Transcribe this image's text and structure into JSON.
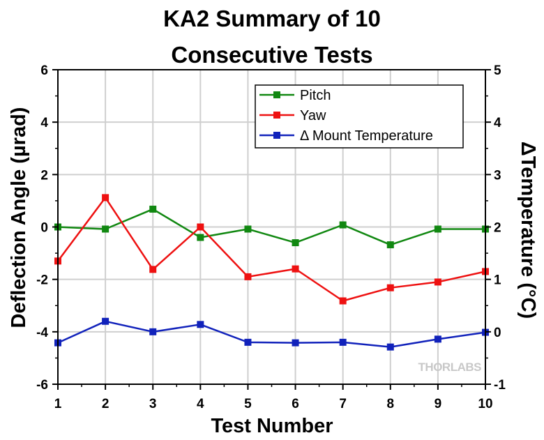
{
  "chart_data": {
    "type": "line",
    "title": [
      "KA2 Summary of 10",
      "Consecutive Tests"
    ],
    "xlabel": "Test Number",
    "ylabel": "Deflection Angle (µrad)",
    "ylabel_right": "ΔTemperature (°C)",
    "x": [
      1,
      2,
      3,
      4,
      5,
      6,
      7,
      8,
      9,
      10
    ],
    "xlim": [
      1,
      10
    ],
    "ylim": [
      -6,
      6
    ],
    "ylim_right": [
      -1,
      5
    ],
    "x_ticks": [
      "1",
      "2",
      "3",
      "4",
      "5",
      "6",
      "7",
      "8",
      "9",
      "10"
    ],
    "y_ticks": [
      "-6",
      "-4",
      "-2",
      "0",
      "2",
      "4",
      "6"
    ],
    "y_ticks_right": [
      "-1",
      "0",
      "1",
      "2",
      "3",
      "4",
      "5"
    ],
    "grid": true,
    "legend_position": "top-right",
    "series": [
      {
        "name": "Pitch",
        "axis": "left",
        "color": "#118811",
        "values": [
          0.0,
          -0.08,
          0.68,
          -0.4,
          -0.08,
          -0.6,
          0.08,
          -0.68,
          -0.08,
          -0.08
        ]
      },
      {
        "name": "Yaw",
        "axis": "left",
        "color": "#ee1111",
        "values": [
          -1.3,
          1.12,
          -1.62,
          0.0,
          -1.9,
          -1.6,
          -2.82,
          -2.32,
          -2.1,
          -1.7
        ]
      },
      {
        "name": "Δ Mount Temperature",
        "axis": "right",
        "color": "#1122bb",
        "values": [
          -0.21,
          0.2,
          0.0,
          0.14,
          -0.2,
          -0.21,
          -0.2,
          -0.29,
          -0.14,
          -0.01
        ]
      }
    ],
    "watermark": "THORLABS"
  }
}
